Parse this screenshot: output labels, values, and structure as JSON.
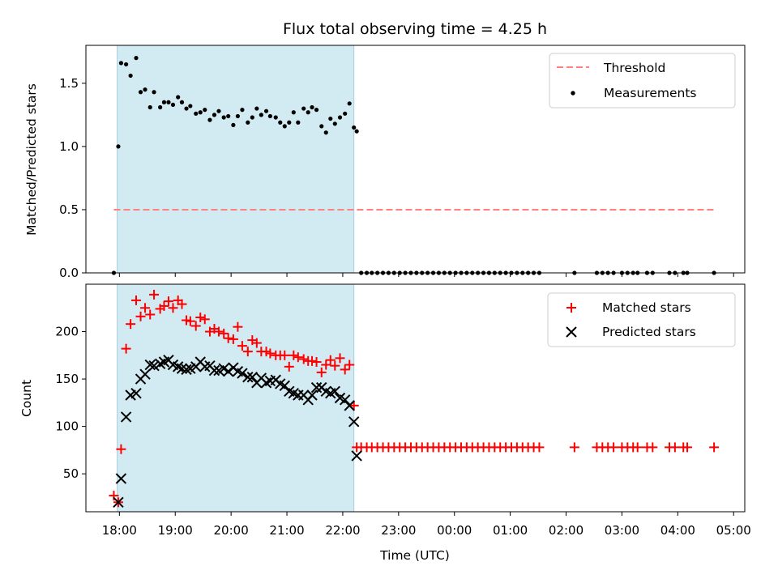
{
  "chart_data": {
    "type": "scatter",
    "title": "Flux total observing time = 4.25 h",
    "xlabel": "Time (UTC)",
    "x_unit": "hours since 18:00 UTC",
    "xlim": [
      -0.6,
      11.2
    ],
    "x_ticks": [
      {
        "value": 0,
        "label": "18:00"
      },
      {
        "value": 1,
        "label": "19:00"
      },
      {
        "value": 2,
        "label": "20:00"
      },
      {
        "value": 3,
        "label": "21:00"
      },
      {
        "value": 4,
        "label": "22:00"
      },
      {
        "value": 5,
        "label": "23:00"
      },
      {
        "value": 6,
        "label": "00:00"
      },
      {
        "value": 7,
        "label": "01:00"
      },
      {
        "value": 8,
        "label": "02:00"
      },
      {
        "value": 9,
        "label": "03:00"
      },
      {
        "value": 10,
        "label": "04:00"
      },
      {
        "value": 11,
        "label": "05:00"
      }
    ],
    "observing_window": [
      -0.04,
      4.2
    ],
    "panels": [
      {
        "name": "ratio",
        "ylabel": "Matched/Predicted stars",
        "ylim": [
          0,
          1.8
        ],
        "y_ticks": [
          {
            "value": 0,
            "label": "0.0"
          },
          {
            "value": 0.5,
            "label": "0.5"
          },
          {
            "value": 1.0,
            "label": "1.0"
          },
          {
            "value": 1.5,
            "label": "1.5"
          }
        ],
        "threshold": {
          "name": "Threshold",
          "value": 0.5,
          "x_range": [
            -0.1,
            10.65
          ],
          "color": "#ff8080"
        },
        "legend": [
          "Threshold",
          "Measurements"
        ],
        "series": [
          {
            "name": "Measurements",
            "marker": "dot",
            "color": "#000000",
            "x": [
              -0.1,
              -0.02,
              0.03,
              0.12,
              0.2,
              0.3,
              0.38,
              0.46,
              0.55,
              0.62,
              0.73,
              0.8,
              0.88,
              0.96,
              1.05,
              1.12,
              1.2,
              1.27,
              1.37,
              1.45,
              1.53,
              1.62,
              1.7,
              1.78,
              1.87,
              1.95,
              2.04,
              2.12,
              2.2,
              2.3,
              2.38,
              2.46,
              2.54,
              2.63,
              2.7,
              2.8,
              2.88,
              2.96,
              3.04,
              3.12,
              3.2,
              3.3,
              3.38,
              3.45,
              3.53,
              3.62,
              3.7,
              3.78,
              3.86,
              3.95,
              4.04,
              4.12,
              4.2,
              4.25,
              4.33,
              4.43,
              4.52,
              4.62,
              4.72,
              4.82,
              4.92,
              5.02,
              5.12,
              5.22,
              5.32,
              5.42,
              5.52,
              5.62,
              5.72,
              5.82,
              5.92,
              6.02,
              6.12,
              6.22,
              6.32,
              6.42,
              6.52,
              6.62,
              6.72,
              6.82,
              6.92,
              7.02,
              7.12,
              7.22,
              7.32,
              7.42,
              7.52,
              8.15,
              8.55,
              8.65,
              8.75,
              8.85,
              9.0,
              9.1,
              9.2,
              9.28,
              9.45,
              9.55,
              9.85,
              9.95,
              10.1,
              10.17,
              10.65
            ],
            "y": [
              0.0,
              1.0,
              1.66,
              1.65,
              1.56,
              1.7,
              1.43,
              1.45,
              1.31,
              1.43,
              1.31,
              1.35,
              1.35,
              1.33,
              1.39,
              1.35,
              1.3,
              1.32,
              1.26,
              1.27,
              1.29,
              1.21,
              1.25,
              1.28,
              1.23,
              1.24,
              1.17,
              1.24,
              1.29,
              1.19,
              1.23,
              1.3,
              1.25,
              1.28,
              1.24,
              1.23,
              1.19,
              1.16,
              1.19,
              1.27,
              1.19,
              1.3,
              1.27,
              1.31,
              1.29,
              1.16,
              1.11,
              1.22,
              1.18,
              1.23,
              1.26,
              1.34,
              1.15,
              1.12,
              0.0,
              0.0,
              0.0,
              0.0,
              0.0,
              0.0,
              0.0,
              0.0,
              0.0,
              0.0,
              0.0,
              0.0,
              0.0,
              0.0,
              0.0,
              0.0,
              0.0,
              0.0,
              0.0,
              0.0,
              0.0,
              0.0,
              0.0,
              0.0,
              0.0,
              0.0,
              0.0,
              0.0,
              0.0,
              0.0,
              0.0,
              0.0,
              0.0,
              0.0,
              0.0,
              0.0,
              0.0,
              0.0,
              0.0,
              0.0,
              0.0,
              0.0,
              0.0,
              0.0,
              0.0,
              0.0,
              0.0,
              0.0,
              0.0
            ]
          }
        ]
      },
      {
        "name": "counts",
        "ylabel": "Count",
        "ylim": [
          10,
          250
        ],
        "y_ticks": [
          {
            "value": 50,
            "label": "50"
          },
          {
            "value": 100,
            "label": "100"
          },
          {
            "value": 150,
            "label": "150"
          },
          {
            "value": 200,
            "label": "200"
          }
        ],
        "legend": [
          "Matched stars",
          "Predicted stars"
        ],
        "series": [
          {
            "name": "Matched stars",
            "marker": "plus",
            "color": "#ff0000",
            "x": [
              -0.1,
              -0.02,
              0.03,
              0.12,
              0.2,
              0.3,
              0.38,
              0.46,
              0.55,
              0.62,
              0.73,
              0.8,
              0.88,
              0.96,
              1.05,
              1.12,
              1.2,
              1.27,
              1.37,
              1.45,
              1.53,
              1.62,
              1.7,
              1.78,
              1.87,
              1.95,
              2.04,
              2.12,
              2.2,
              2.3,
              2.38,
              2.46,
              2.54,
              2.63,
              2.7,
              2.8,
              2.88,
              2.96,
              3.04,
              3.12,
              3.2,
              3.3,
              3.38,
              3.45,
              3.53,
              3.62,
              3.7,
              3.78,
              3.86,
              3.95,
              4.04,
              4.12,
              4.2,
              4.25,
              4.33,
              4.43,
              4.52,
              4.62,
              4.72,
              4.82,
              4.92,
              5.02,
              5.12,
              5.22,
              5.32,
              5.42,
              5.52,
              5.62,
              5.72,
              5.82,
              5.92,
              6.02,
              6.12,
              6.22,
              6.32,
              6.42,
              6.52,
              6.62,
              6.72,
              6.82,
              6.92,
              7.02,
              7.12,
              7.22,
              7.32,
              7.42,
              7.52,
              8.15,
              8.55,
              8.65,
              8.75,
              8.85,
              9.0,
              9.1,
              9.2,
              9.28,
              9.45,
              9.55,
              9.85,
              9.95,
              10.1,
              10.17,
              10.65
            ],
            "y": [
              27,
              20,
              76,
              182,
              208,
              233,
              216,
              225,
              218,
              239,
              224,
              227,
              232,
              225,
              233,
              229,
              212,
              211,
              206,
              215,
              213,
              200,
              203,
              200,
              198,
              193,
              192,
              205,
              185,
              179,
              191,
              188,
              179,
              179,
              177,
              175,
              175,
              175,
              163,
              175,
              173,
              171,
              169,
              169,
              168,
              157,
              165,
              170,
              164,
              172,
              160,
              165,
              122,
              78,
              78,
              78,
              78,
              78,
              78,
              78,
              78,
              78,
              78,
              78,
              78,
              78,
              78,
              78,
              78,
              78,
              78,
              78,
              78,
              78,
              78,
              78,
              78,
              78,
              78,
              78,
              78,
              78,
              78,
              78,
              78,
              78,
              78,
              78,
              78,
              78,
              78,
              78,
              78,
              78,
              78,
              78,
              78,
              78,
              78,
              78,
              78,
              78,
              78
            ]
          },
          {
            "name": "Predicted stars",
            "marker": "x",
            "color": "#000000",
            "x": [
              -0.02,
              0.03,
              0.12,
              0.2,
              0.3,
              0.38,
              0.46,
              0.55,
              0.62,
              0.73,
              0.8,
              0.88,
              0.96,
              1.05,
              1.12,
              1.2,
              1.27,
              1.37,
              1.45,
              1.53,
              1.62,
              1.7,
              1.78,
              1.87,
              1.95,
              2.04,
              2.12,
              2.2,
              2.3,
              2.38,
              2.46,
              2.54,
              2.63,
              2.7,
              2.8,
              2.88,
              2.96,
              3.04,
              3.12,
              3.2,
              3.3,
              3.38,
              3.45,
              3.53,
              3.62,
              3.7,
              3.78,
              3.86,
              3.95,
              4.04,
              4.12,
              4.2,
              4.25
            ],
            "y": [
              20,
              45,
              110,
              133,
              135,
              150,
              155,
              165,
              164,
              166,
              168,
              170,
              165,
              163,
              161,
              160,
              161,
              163,
              168,
              163,
              164,
              159,
              159,
              161,
              158,
              162,
              158,
              156,
              152,
              152,
              146,
              151,
              146,
              148,
              149,
              145,
              143,
              137,
              135,
              133,
              133,
              128,
              133,
              141,
              141,
              137,
              135,
              137,
              130,
              128,
              122,
              105,
              69
            ]
          }
        ]
      }
    ]
  }
}
